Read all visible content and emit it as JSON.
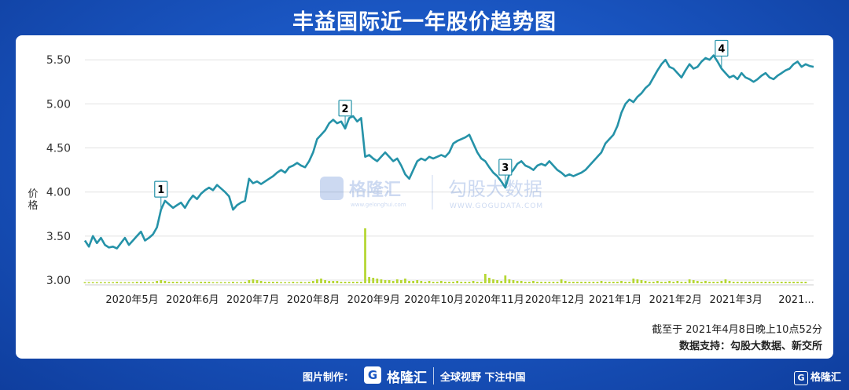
{
  "title": "丰益国际近一年股价趋势图",
  "chart_data": {
    "type": "line",
    "ylabel": "价格",
    "ylim": [
      3.0,
      5.6
    ],
    "y_ticks": [
      "3.00",
      "3.50",
      "4.00",
      "4.50",
      "5.00",
      "5.50"
    ],
    "x_tick_labels": [
      "2020年5月",
      "2020年6月",
      "2020年7月",
      "2020年8月",
      "2020年9月",
      "2020年10月",
      "2020年11月",
      "2020年12月",
      "2021年1月",
      "2021年2月",
      "2021年3月",
      "2021..."
    ],
    "grid": "horizontal",
    "series": [
      {
        "values": [
          3.45,
          3.38,
          3.5,
          3.42,
          3.48,
          3.4,
          3.37,
          3.38,
          3.36,
          3.42,
          3.48,
          3.4,
          3.45,
          3.5,
          3.55,
          3.45,
          3.48,
          3.52,
          3.6,
          3.8,
          3.9,
          3.86,
          3.82,
          3.85,
          3.88,
          3.82,
          3.9,
          3.96,
          3.92,
          3.98,
          4.02,
          4.05,
          4.02,
          4.08,
          4.04,
          4.0,
          3.95,
          3.8,
          3.85,
          3.88,
          3.9,
          4.15,
          4.1,
          4.12,
          4.09,
          4.12,
          4.15,
          4.18,
          4.22,
          4.25,
          4.22,
          4.28,
          4.3,
          4.33,
          4.3,
          4.28,
          4.35,
          4.45,
          4.6,
          4.65,
          4.7,
          4.78,
          4.82,
          4.78,
          4.8,
          4.72,
          4.84,
          4.86,
          4.8,
          4.84,
          4.4,
          4.42,
          4.38,
          4.35,
          4.4,
          4.45,
          4.4,
          4.35,
          4.38,
          4.3,
          4.2,
          4.15,
          4.25,
          4.35,
          4.38,
          4.36,
          4.4,
          4.38,
          4.4,
          4.42,
          4.4,
          4.45,
          4.55,
          4.58,
          4.6,
          4.62,
          4.65,
          4.55,
          4.45,
          4.38,
          4.35,
          4.28,
          4.22,
          4.18,
          4.12,
          4.05,
          4.2,
          4.25,
          4.32,
          4.35,
          4.3,
          4.28,
          4.25,
          4.3,
          4.32,
          4.3,
          4.35,
          4.3,
          4.25,
          4.22,
          4.18,
          4.2,
          4.18,
          4.2,
          4.22,
          4.25,
          4.3,
          4.35,
          4.4,
          4.45,
          4.55,
          4.6,
          4.65,
          4.75,
          4.9,
          5.0,
          5.05,
          5.02,
          5.08,
          5.12,
          5.18,
          5.22,
          5.3,
          5.38,
          5.45,
          5.5,
          5.42,
          5.4,
          5.35,
          5.3,
          5.38,
          5.45,
          5.4,
          5.42,
          5.48,
          5.52,
          5.5,
          5.55,
          5.48,
          5.4,
          5.35,
          5.3,
          5.32,
          5.28,
          5.35,
          5.3,
          5.28,
          5.25,
          5.28,
          5.32,
          5.35,
          5.3,
          5.28,
          5.32,
          5.35,
          5.38,
          5.4,
          5.45,
          5.48,
          5.42,
          5.45,
          5.43,
          5.42
        ]
      },
      {
        "name": "volume",
        "values": [
          0.01,
          0.01,
          0.01,
          0.01,
          0.01,
          0.01,
          0.01,
          0.01,
          0.02,
          0.01,
          0.01,
          0.01,
          0.01,
          0.02,
          0.02,
          0.02,
          0.01,
          0.01,
          0.03,
          0.04,
          0.03,
          0.02,
          0.02,
          0.02,
          0.02,
          0.01,
          0.02,
          0.01,
          0.01,
          0.02,
          0.02,
          0.02,
          0.01,
          0.01,
          0.01,
          0.01,
          0.01,
          0.02,
          0.01,
          0.01,
          0.02,
          0.04,
          0.05,
          0.04,
          0.03,
          0.02,
          0.02,
          0.02,
          0.02,
          0.01,
          0.01,
          0.01,
          0.02,
          0.01,
          0.02,
          0.01,
          0.02,
          0.03,
          0.05,
          0.06,
          0.04,
          0.03,
          0.03,
          0.03,
          0.02,
          0.02,
          0.02,
          0.02,
          0.02,
          0.02,
          0.7,
          0.08,
          0.07,
          0.06,
          0.05,
          0.04,
          0.04,
          0.03,
          0.05,
          0.04,
          0.06,
          0.03,
          0.03,
          0.04,
          0.03,
          0.02,
          0.03,
          0.02,
          0.02,
          0.03,
          0.02,
          0.02,
          0.02,
          0.03,
          0.02,
          0.02,
          0.02,
          0.03,
          0.02,
          0.02,
          0.12,
          0.07,
          0.05,
          0.04,
          0.03,
          0.1,
          0.05,
          0.04,
          0.03,
          0.03,
          0.02,
          0.02,
          0.03,
          0.02,
          0.02,
          0.02,
          0.02,
          0.02,
          0.02,
          0.05,
          0.03,
          0.02,
          0.02,
          0.02,
          0.02,
          0.02,
          0.02,
          0.02,
          0.02,
          0.03,
          0.02,
          0.02,
          0.02,
          0.02,
          0.03,
          0.02,
          0.02,
          0.06,
          0.05,
          0.04,
          0.03,
          0.02,
          0.02,
          0.03,
          0.02,
          0.02,
          0.03,
          0.02,
          0.03,
          0.02,
          0.02,
          0.05,
          0.04,
          0.03,
          0.02,
          0.03,
          0.02,
          0.02,
          0.02,
          0.03,
          0.05,
          0.03,
          0.02,
          0.02,
          0.02,
          0.02,
          0.02,
          0.02,
          0.02,
          0.02,
          0.02,
          0.02,
          0.02,
          0.02,
          0.02,
          0.02,
          0.02,
          0.02,
          0.02,
          0.02,
          0.02
        ]
      }
    ],
    "annotations": [
      {
        "label": "1",
        "index": 19
      },
      {
        "label": "2",
        "index": 65
      },
      {
        "label": "3",
        "index": 105
      },
      {
        "label": "4",
        "index": 159
      }
    ],
    "colors": {
      "line": "#2592a8",
      "volume": "#b6d734",
      "marker_border": "#2592a8"
    }
  },
  "watermark": {
    "logo": "格隆汇",
    "logo_url": "www.gelonghui.com",
    "brand": "勾股大数据",
    "brand_url": "WWW.GOGUDATA.COM"
  },
  "notes": {
    "timestamp": "截至于 2021年4月8日晚上10点52分",
    "source": "数据支持：勾股大数据、新交所"
  },
  "footer": {
    "made_by": "图片制作：",
    "logo_letter": "G",
    "logo_text": "格隆汇",
    "slogan": "全球视野 下注中国",
    "corner": "格隆汇"
  }
}
